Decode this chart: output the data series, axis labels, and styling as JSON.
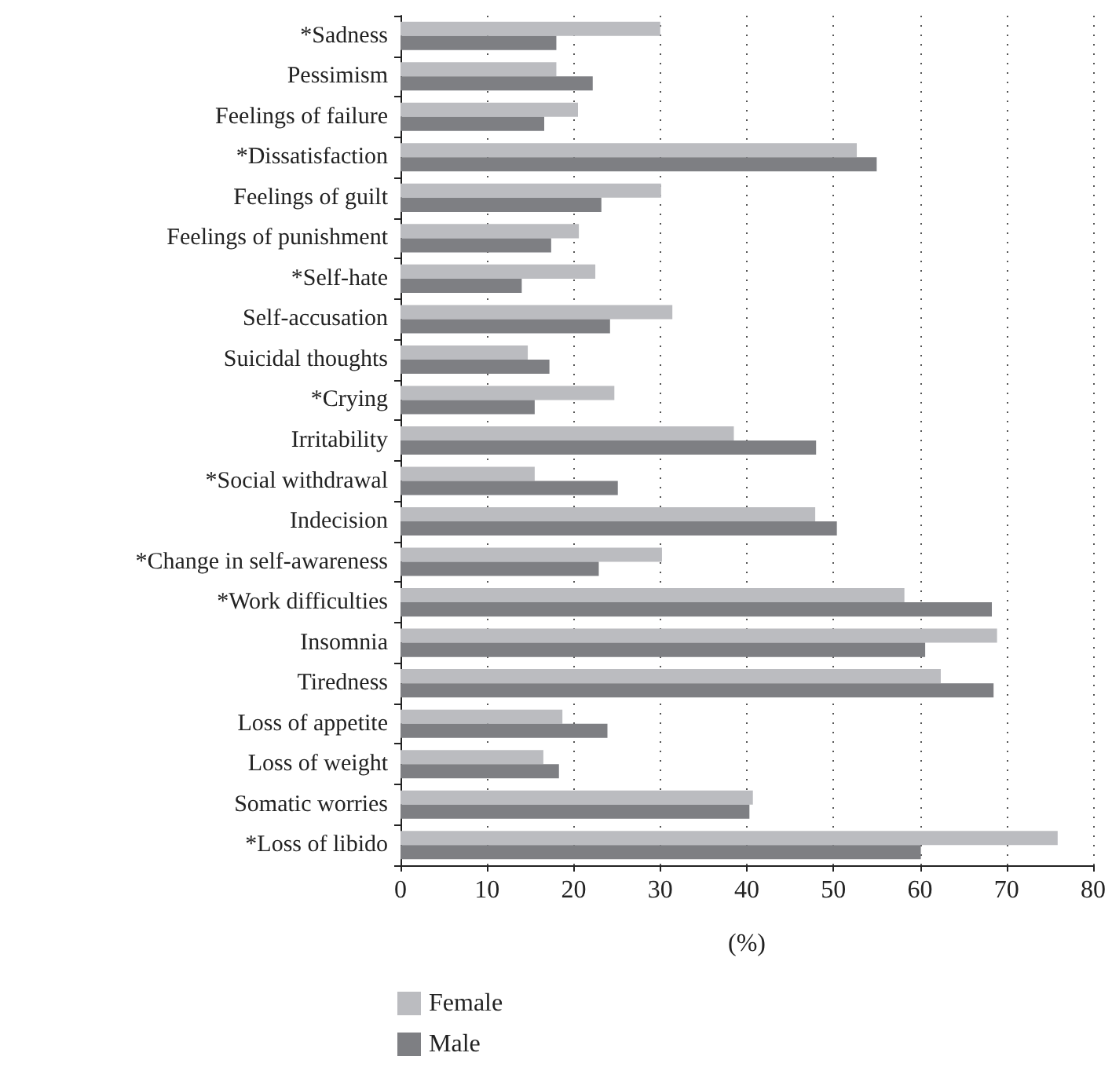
{
  "chart_data": {
    "type": "bar",
    "orientation": "horizontal",
    "xlabel": "(%)",
    "categories": [
      "*Sadness",
      "Pessimism",
      "Feelings of failure",
      "*Dissatisfaction",
      "Feelings of guilt",
      "Feelings of punishment",
      "*Self-hate",
      "Self-accusation",
      "Suicidal thoughts",
      "*Crying",
      "Irritability",
      "*Social withdrawal",
      "Indecision",
      "*Change in self-awareness",
      "*Work difficulties",
      "Insomnia",
      "Tiredness",
      "Loss of appetite",
      "Loss of weight",
      "Somatic worries",
      "*Loss of libido"
    ],
    "series": [
      {
        "name": "Female",
        "color": "#bbbcc0",
        "values": [
          30,
          18,
          20.5,
          52.7,
          30.1,
          20.6,
          22.5,
          31.4,
          14.7,
          24.7,
          38.5,
          15.5,
          47.9,
          30.2,
          58.2,
          68.9,
          62.4,
          18.7,
          16.5,
          40.7,
          75.9
        ]
      },
      {
        "name": "Male",
        "color": "#7e7f83",
        "values": [
          18,
          22.2,
          16.6,
          55,
          23.2,
          17.4,
          14,
          24.2,
          17.2,
          15.5,
          48,
          25.1,
          50.4,
          22.9,
          68.3,
          60.6,
          68.5,
          23.9,
          18.3,
          40.3,
          60.1
        ]
      }
    ],
    "xlim": [
      0,
      80
    ],
    "xticks": [
      0,
      10,
      20,
      30,
      40,
      50,
      60,
      70,
      80
    ],
    "grid": "x",
    "legend": "bottom left"
  }
}
